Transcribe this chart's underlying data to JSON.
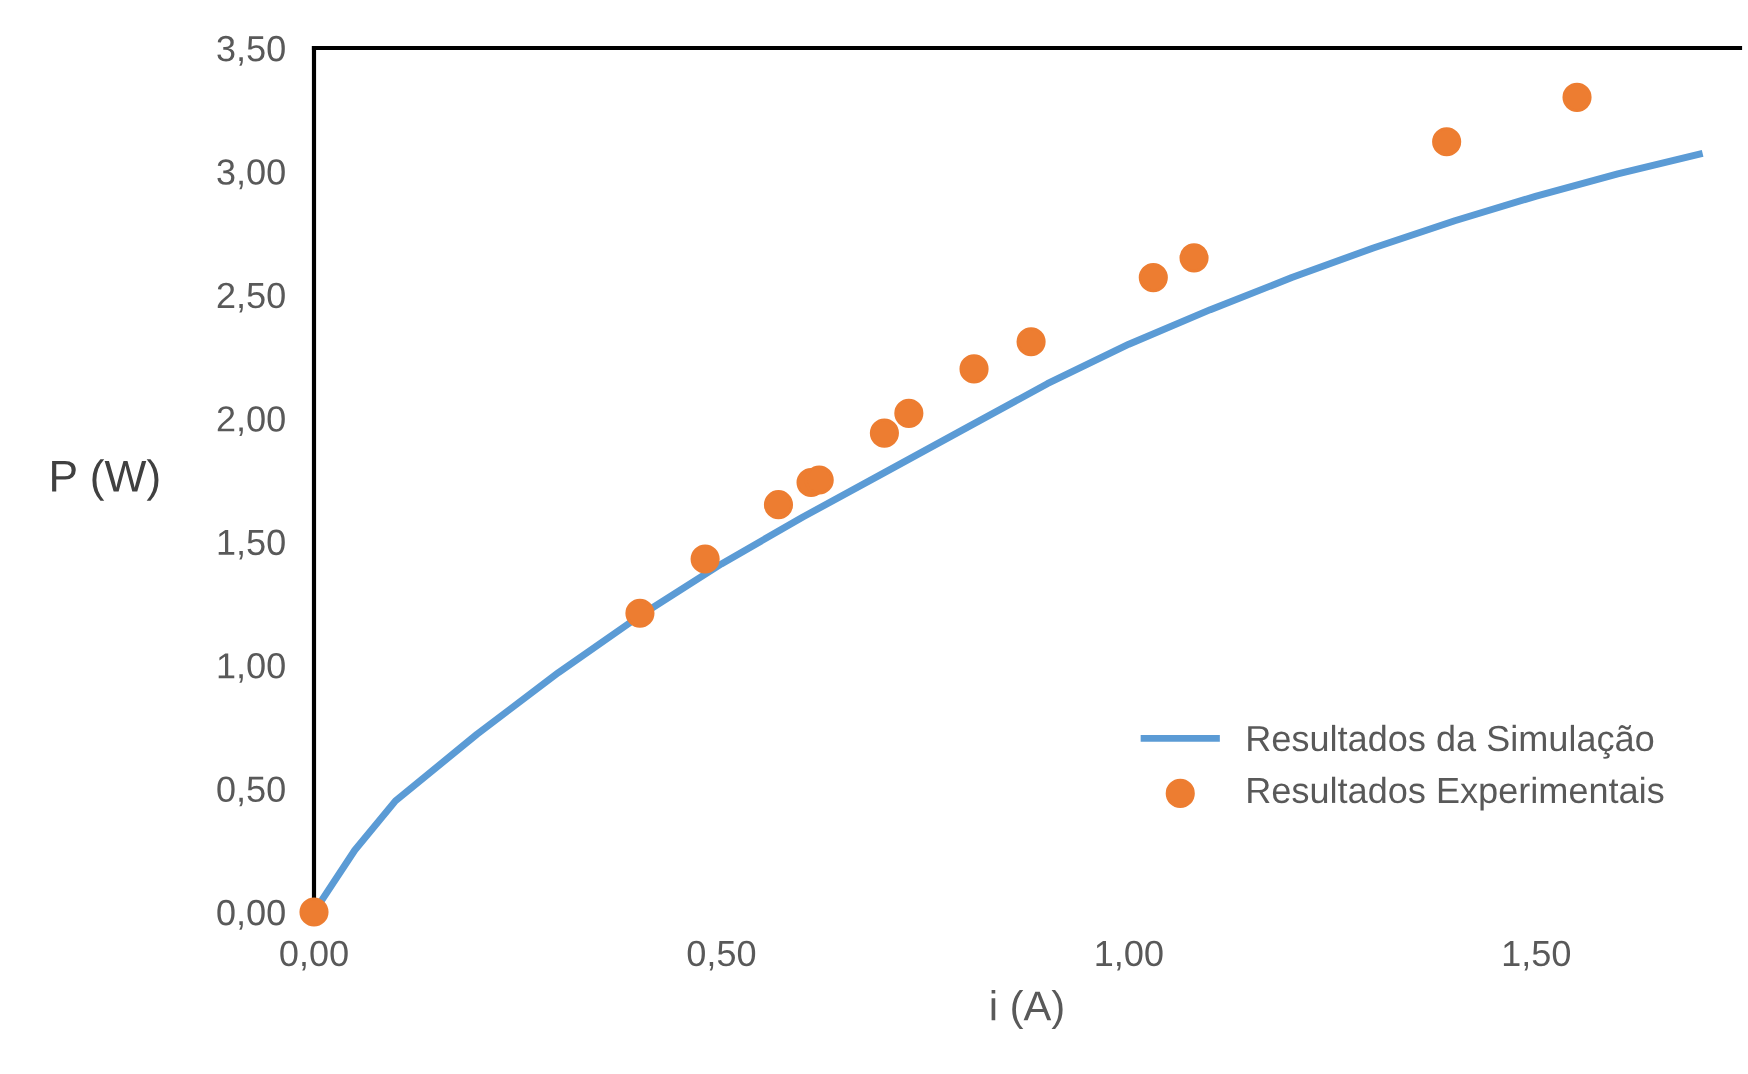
{
  "chart_data": {
    "type": "scatter",
    "xlabel": "i (A)",
    "ylabel": "P (W)",
    "xlim": [
      0,
      1.75
    ],
    "ylim": [
      0,
      3.5
    ],
    "xticks": [
      {
        "value": 0,
        "label": "0,00"
      },
      {
        "value": 0.5,
        "label": "0,50"
      },
      {
        "value": 1.0,
        "label": "1,00"
      },
      {
        "value": 1.5,
        "label": "1,50"
      }
    ],
    "yticks": [
      {
        "value": 0,
        "label": "0,00"
      },
      {
        "value": 0.5,
        "label": "0,50"
      },
      {
        "value": 1.0,
        "label": "1,00"
      },
      {
        "value": 1.5,
        "label": "1,50"
      },
      {
        "value": 2.0,
        "label": "2,00"
      },
      {
        "value": 2.5,
        "label": "2,50"
      },
      {
        "value": 3.0,
        "label": "3,00"
      },
      {
        "value": 3.5,
        "label": "3,50"
      }
    ],
    "grid": false,
    "legend": "bottom right",
    "series": [
      {
        "name": "Resultados da Simulação",
        "type": "line",
        "color": "#5b9bd5",
        "marker": "none",
        "x": [
          0,
          0.05,
          0.1,
          0.2,
          0.3,
          0.4,
          0.5,
          0.6,
          0.7,
          0.8,
          0.9,
          1.0,
          1.1,
          1.2,
          1.3,
          1.4,
          1.5,
          1.6,
          1.7
        ],
        "values": [
          0,
          0.25,
          0.45,
          0.72,
          0.97,
          1.2,
          1.41,
          1.6,
          1.78,
          1.96,
          2.14,
          2.3,
          2.44,
          2.57,
          2.69,
          2.8,
          2.9,
          2.99,
          3.07
        ]
      },
      {
        "name": "Resultados Experimentais",
        "color": "#ed7d31",
        "marker": "circle",
        "x": [
          0,
          0.4,
          0.48,
          0.57,
          0.61,
          0.62,
          0.7,
          0.73,
          0.81,
          0.88,
          1.03,
          1.08,
          1.39,
          1.55
        ],
        "values": [
          0,
          1.21,
          1.43,
          1.65,
          1.74,
          1.75,
          1.94,
          2.02,
          2.2,
          2.31,
          2.57,
          2.65,
          3.12,
          3.3
        ]
      }
    ]
  }
}
